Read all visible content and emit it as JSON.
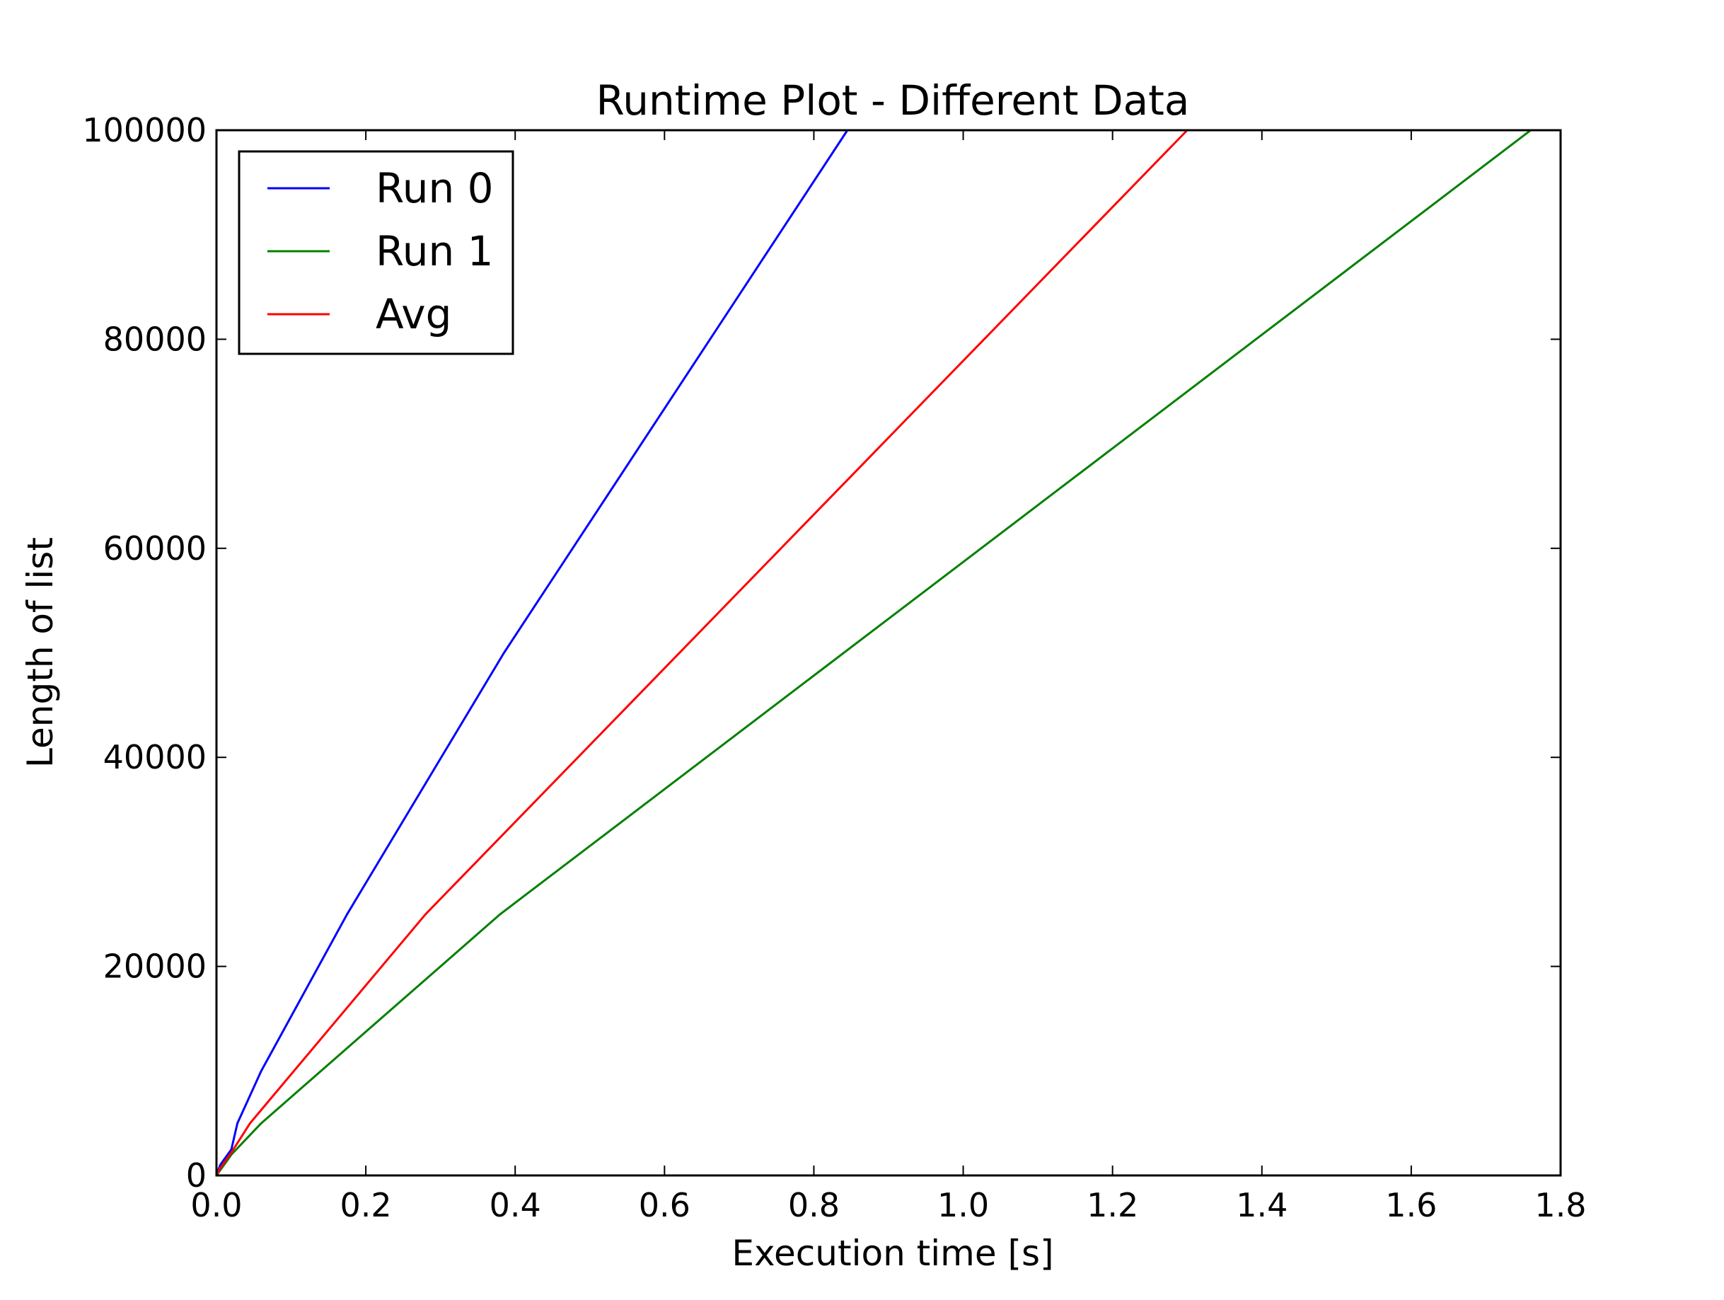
{
  "chart_data": {
    "type": "line",
    "title": "Runtime Plot - Different Data",
    "xlabel": "Execution time [s]",
    "ylabel": "Length of list",
    "xlim": [
      0,
      1.8
    ],
    "ylim": [
      0,
      100000
    ],
    "xticks": [
      "0.0",
      "0.2",
      "0.4",
      "0.6",
      "0.8",
      "1.0",
      "1.2",
      "1.4",
      "1.6",
      "1.8"
    ],
    "yticks": [
      "0",
      "20000",
      "40000",
      "60000",
      "80000",
      "100000"
    ],
    "grid": false,
    "legend_position": "top-left",
    "series": [
      {
        "name": "Run 0",
        "color": "#0000ff",
        "x": [
          0,
          0.005,
          0.01,
          0.02,
          0.028,
          0.06,
          0.175,
          0.385,
          0.845
        ],
        "y": [
          0,
          1000,
          1500,
          2500,
          5000,
          10000,
          25000,
          50000,
          100000
        ]
      },
      {
        "name": "Run 1",
        "color": "#008000",
        "x": [
          0,
          0.005,
          0.01,
          0.02,
          0.06,
          0.38,
          1.76
        ],
        "y": [
          0,
          500,
          1000,
          2000,
          5000,
          25000,
          100000
        ]
      },
      {
        "name": "Avg",
        "color": "#ff0000",
        "x": [
          0,
          0.005,
          0.01,
          0.02,
          0.045,
          0.28,
          1.3
        ],
        "y": [
          0,
          700,
          1200,
          2200,
          5000,
          25000,
          100000
        ]
      }
    ]
  }
}
